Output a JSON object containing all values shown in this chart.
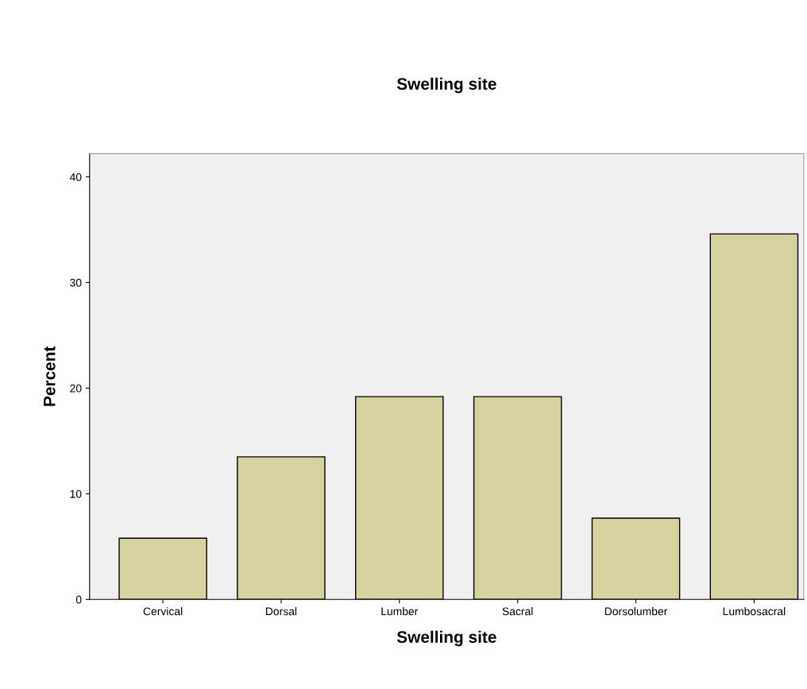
{
  "chart_data": {
    "type": "bar",
    "title": "Swelling site",
    "xlabel": "Swelling site",
    "ylabel": "Percent",
    "categories": [
      "Cervical",
      "Dorsal",
      "Lumber",
      "Sacral",
      "Dorsolumber",
      "Lumbosacral"
    ],
    "values": [
      5.8,
      13.5,
      19.2,
      19.2,
      7.7,
      34.6
    ],
    "color": "#d6d3a0",
    "ylim": [
      0,
      42.2
    ],
    "yticks": [
      0,
      10,
      20,
      30,
      40
    ],
    "grid": false,
    "legend": false
  }
}
